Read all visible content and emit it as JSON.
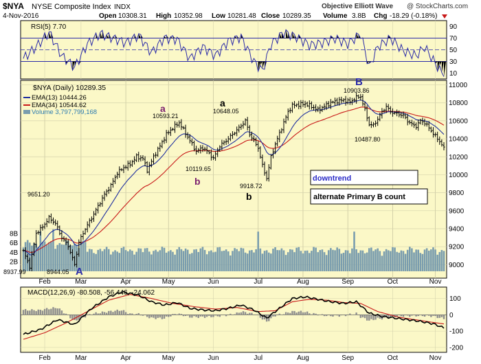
{
  "header": {
    "symbol": "$NYA",
    "name": "NYSE Composite Index",
    "exchange": "INDX",
    "date": "4-Nov-2016",
    "open_label": "Open",
    "open": "10308.31",
    "high_label": "High",
    "high": "10352.98",
    "low_label": "Low",
    "low": "10281.48",
    "close_label": "Close",
    "close": "10289.35",
    "volume_label": "Volume",
    "volume": "3.8B",
    "chg_label": "Chg",
    "chg": "-18.29 (-0.18%)",
    "credit_left": "Objective Elliott Wave",
    "credit_right": "@ StockCharts.com"
  },
  "colors": {
    "panel_bg": "#fbf8c7",
    "rsi_line": "#2a2aa8",
    "rsi_fill": "#000000",
    "ema13": "#1f2fa0",
    "ema34": "#c81818",
    "volume": "#7a9dae",
    "price_bar": "#000000",
    "macd": "#000000",
    "signal": "#c81818",
    "histogram": "#8e8e8e",
    "wave_a_color": "#7a1f6e"
  },
  "rsi": {
    "label": "RSI(5) 7.70",
    "ticks": [
      "90",
      "70",
      "50",
      "30",
      "10"
    ]
  },
  "price": {
    "title": "$NYA (Daily) 10289.35",
    "legend_ema13": "EMA(13) 10444.26",
    "legend_ema34": "EMA(34) 10544.62",
    "legend_volume": "Volume 3,797,799,168",
    "y_ticks": [
      "11000",
      "10800",
      "10600",
      "10400",
      "10200",
      "10000",
      "9800",
      "9600",
      "9400",
      "9200",
      "9000"
    ],
    "vol_ticks": [
      "8B",
      "6B",
      "4B",
      "2B"
    ],
    "annotations": {
      "low_feb": "8937.99",
      "low_feb2": "8944.05",
      "high_mar": "9651.20",
      "high_apr": "10593.21",
      "low_may": "10119.65",
      "high_jun": "10648.05",
      "low_jun": "9918.72",
      "high_sep": "10903.86",
      "low_sep": "10487.80",
      "wave_A": "A",
      "wave_a1": "a",
      "wave_b1": "b",
      "wave_a2": "a",
      "wave_b2": "b",
      "wave_B": "B"
    },
    "box_downtrend": "downtrend",
    "box_alt": "alternate Primary B count"
  },
  "months": [
    "Feb",
    "Mar",
    "Apr",
    "May",
    "Jun",
    "Jul",
    "Aug",
    "Sep",
    "Oct",
    "Nov"
  ],
  "macd": {
    "label": "MACD(12,26,9) -80.508, -56.446, -24.062",
    "ticks": [
      "100",
      "0",
      "-100",
      "-200"
    ]
  },
  "chart_data": {
    "type": "ohlc",
    "title": "$NYA (Daily) 10289.35",
    "ylim": [
      8850,
      11050
    ],
    "x_labels": [
      "Feb",
      "Mar",
      "Apr",
      "May",
      "Jun",
      "Jul",
      "Aug",
      "Sep",
      "Oct",
      "Nov"
    ],
    "anchors_close": [
      [
        0,
        9150
      ],
      [
        3,
        8980
      ],
      [
        6,
        9350
      ],
      [
        9,
        9420
      ],
      [
        12,
        9520
      ],
      [
        15,
        9460
      ],
      [
        18,
        9300
      ],
      [
        21,
        9210
      ],
      [
        24,
        9000
      ],
      [
        26,
        9250
      ],
      [
        29,
        9400
      ],
      [
        32,
        9520
      ],
      [
        35,
        9650
      ],
      [
        38,
        9780
      ],
      [
        41,
        9880
      ],
      [
        44,
        10020
      ],
      [
        47,
        10080
      ],
      [
        50,
        10120
      ],
      [
        53,
        10200
      ],
      [
        56,
        10180
      ],
      [
        58,
        10050
      ],
      [
        61,
        10200
      ],
      [
        64,
        10320
      ],
      [
        67,
        10450
      ],
      [
        70,
        10520
      ],
      [
        73,
        10580
      ],
      [
        75,
        10500
      ],
      [
        78,
        10380
      ],
      [
        81,
        10260
      ],
      [
        84,
        10300
      ],
      [
        87,
        10240
      ],
      [
        89,
        10180
      ],
      [
        92,
        10320
      ],
      [
        95,
        10380
      ],
      [
        98,
        10450
      ],
      [
        101,
        10520
      ],
      [
        104,
        10600
      ],
      [
        106,
        10450
      ],
      [
        108,
        10380
      ],
      [
        110,
        10300
      ],
      [
        112,
        10100
      ],
      [
        114,
        9960
      ],
      [
        116,
        10200
      ],
      [
        118,
        10340
      ],
      [
        120,
        10460
      ],
      [
        122,
        10580
      ],
      [
        124,
        10700
      ],
      [
        126,
        10770
      ],
      [
        129,
        10780
      ],
      [
        132,
        10790
      ],
      [
        135,
        10760
      ],
      [
        138,
        10720
      ],
      [
        141,
        10760
      ],
      [
        144,
        10800
      ],
      [
        147,
        10820
      ],
      [
        150,
        10830
      ],
      [
        153,
        10810
      ],
      [
        156,
        10860
      ],
      [
        158,
        10870
      ],
      [
        160,
        10720
      ],
      [
        162,
        10560
      ],
      [
        164,
        10550
      ],
      [
        166,
        10620
      ],
      [
        168,
        10700
      ],
      [
        170,
        10760
      ],
      [
        172,
        10700
      ],
      [
        175,
        10680
      ],
      [
        178,
        10660
      ],
      [
        180,
        10600
      ],
      [
        182,
        10560
      ],
      [
        184,
        10540
      ],
      [
        186,
        10600
      ],
      [
        188,
        10580
      ],
      [
        190,
        10520
      ],
      [
        192,
        10460
      ],
      [
        194,
        10400
      ],
      [
        196,
        10340
      ],
      [
        197,
        10289
      ]
    ],
    "rsi_anchors": [
      [
        0,
        35
      ],
      [
        6,
        55
      ],
      [
        12,
        80
      ],
      [
        18,
        40
      ],
      [
        24,
        20
      ],
      [
        30,
        60
      ],
      [
        36,
        78
      ],
      [
        42,
        70
      ],
      [
        48,
        62
      ],
      [
        54,
        75
      ],
      [
        60,
        45
      ],
      [
        66,
        70
      ],
      [
        72,
        68
      ],
      [
        78,
        35
      ],
      [
        84,
        55
      ],
      [
        90,
        40
      ],
      [
        96,
        65
      ],
      [
        102,
        72
      ],
      [
        108,
        30
      ],
      [
        112,
        14
      ],
      [
        116,
        60
      ],
      [
        122,
        80
      ],
      [
        128,
        72
      ],
      [
        134,
        58
      ],
      [
        140,
        62
      ],
      [
        146,
        70
      ],
      [
        152,
        60
      ],
      [
        158,
        78
      ],
      [
        162,
        20
      ],
      [
        166,
        55
      ],
      [
        172,
        70
      ],
      [
        178,
        48
      ],
      [
        184,
        40
      ],
      [
        188,
        55
      ],
      [
        192,
        32
      ],
      [
        195,
        15
      ],
      [
        197,
        8
      ]
    ],
    "macd_anchors": [
      [
        0,
        -120
      ],
      [
        8,
        -90
      ],
      [
        16,
        -30
      ],
      [
        24,
        -60
      ],
      [
        32,
        40
      ],
      [
        40,
        110
      ],
      [
        46,
        140
      ],
      [
        54,
        120
      ],
      [
        60,
        80
      ],
      [
        66,
        60
      ],
      [
        72,
        75
      ],
      [
        78,
        40
      ],
      [
        84,
        30
      ],
      [
        90,
        25
      ],
      [
        96,
        40
      ],
      [
        102,
        60
      ],
      [
        108,
        30
      ],
      [
        114,
        -20
      ],
      [
        120,
        40
      ],
      [
        126,
        100
      ],
      [
        132,
        110
      ],
      [
        138,
        95
      ],
      [
        144,
        80
      ],
      [
        150,
        70
      ],
      [
        156,
        80
      ],
      [
        162,
        10
      ],
      [
        168,
        -10
      ],
      [
        174,
        -20
      ],
      [
        180,
        -30
      ],
      [
        186,
        -40
      ],
      [
        192,
        -55
      ],
      [
        197,
        -80
      ]
    ],
    "signal_anchors": [
      [
        0,
        -150
      ],
      [
        10,
        -110
      ],
      [
        20,
        -50
      ],
      [
        30,
        20
      ],
      [
        40,
        90
      ],
      [
        50,
        125
      ],
      [
        60,
        100
      ],
      [
        70,
        70
      ],
      [
        80,
        50
      ],
      [
        90,
        35
      ],
      [
        100,
        45
      ],
      [
        110,
        20
      ],
      [
        118,
        25
      ],
      [
        126,
        80
      ],
      [
        134,
        95
      ],
      [
        142,
        90
      ],
      [
        150,
        75
      ],
      [
        158,
        70
      ],
      [
        166,
        20
      ],
      [
        176,
        -15
      ],
      [
        186,
        -35
      ],
      [
        197,
        -56
      ]
    ]
  }
}
